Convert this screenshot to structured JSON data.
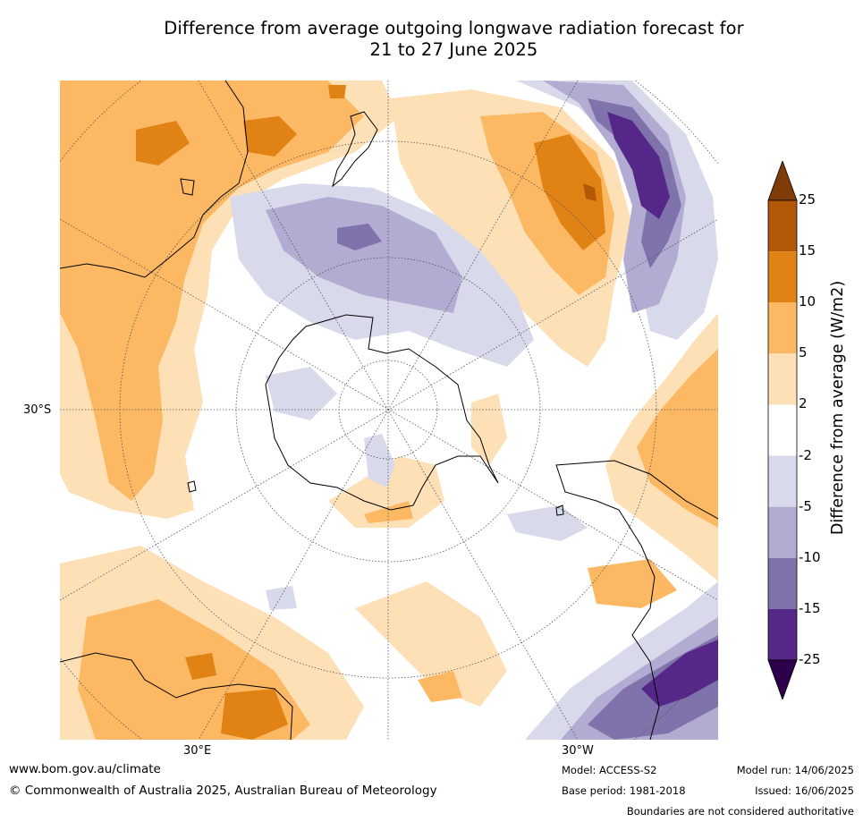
{
  "map": {
    "title_line1": "Difference from average outgoing longwave radiation forecast for",
    "title_line2": "21 to 27 June 2025",
    "projection": "south-polar-stereographic",
    "lat_label": "30°S",
    "lon_label_east": "30°E",
    "lon_label_west": "30°W",
    "legend": {
      "title": "Difference from average (W/m2)",
      "ticks": [
        "25",
        "15",
        "10",
        "5",
        "2",
        "-2",
        "-5",
        "-10",
        "-15",
        "-25"
      ],
      "bins": [
        {
          "range": "> 25",
          "color": "#7f3b08"
        },
        {
          "range": "15 to 25",
          "color": "#b35806"
        },
        {
          "range": "10 to 15",
          "color": "#e08214"
        },
        {
          "range": "5 to 10",
          "color": "#fdb863"
        },
        {
          "range": "2 to 5",
          "color": "#fee0b6"
        },
        {
          "range": "-2 to 2",
          "color": "#ffffff"
        },
        {
          "range": "-5 to -2",
          "color": "#d8daeb"
        },
        {
          "range": "-10 to -5",
          "color": "#b2abd2"
        },
        {
          "range": "-15 to -10",
          "color": "#8073ac"
        },
        {
          "range": "-25 to -15",
          "color": "#542788"
        },
        {
          "range": "< -25",
          "color": "#2d004b"
        }
      ]
    },
    "colors": {
      "coastline": "#000000",
      "graticule": "#555555",
      "rivers_borders": "#888888"
    }
  },
  "footer": {
    "website": "www.bom.gov.au/climate",
    "copyright": "© Commonwealth of Australia 2025, Australian Bureau of Meteorology",
    "model": "Model: ACCESS-S2",
    "base_period": "Base period: 1981-2018",
    "model_run": "Model run: 14/06/2025",
    "issued": "Issued: 16/06/2025",
    "disclaimer": "Boundaries are not considered authoritative"
  }
}
